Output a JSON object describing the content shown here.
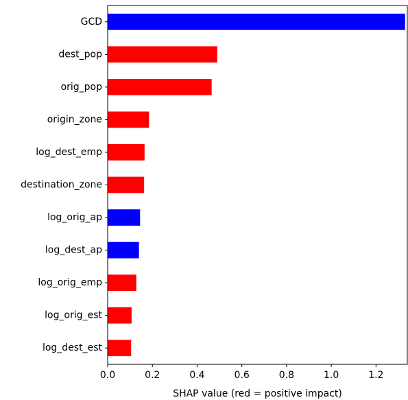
{
  "chart_data": {
    "type": "bar",
    "orientation": "horizontal",
    "categories": [
      "GCD",
      "dest_pop",
      "orig_pop",
      "origin_zone",
      "log_dest_emp",
      "destination_zone",
      "log_orig_ap",
      "log_dest_ap",
      "log_orig_emp",
      "log_orig_est",
      "log_dest_est"
    ],
    "values": [
      1.33,
      0.49,
      0.465,
      0.185,
      0.165,
      0.163,
      0.145,
      0.14,
      0.128,
      0.107,
      0.105
    ],
    "impact": [
      "negative",
      "positive",
      "positive",
      "positive",
      "positive",
      "positive",
      "negative",
      "negative",
      "positive",
      "positive",
      "positive"
    ],
    "colors": {
      "positive": "#ff0000",
      "negative": "#0000ff"
    },
    "xlabel": "SHAP value (red = positive impact)",
    "ylabel": "",
    "title": "",
    "xlim": [
      0,
      1.34
    ],
    "xticks": [
      0.0,
      0.2,
      0.4,
      0.6,
      0.8,
      1.0,
      1.2
    ],
    "xtick_labels": [
      "0.0",
      "0.2",
      "0.4",
      "0.6",
      "0.8",
      "1.0",
      "1.2"
    ],
    "grid": false,
    "legend": "none"
  }
}
